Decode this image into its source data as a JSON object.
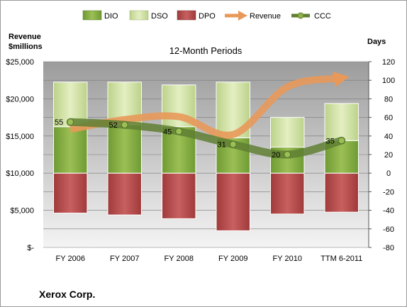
{
  "chart_data": {
    "type": "bar",
    "title": "12-Month Periods",
    "company": "Xerox Corp.",
    "categories": [
      "FY 2006",
      "FY 2007",
      "FY 2008",
      "FY 2009",
      "FY 2010",
      "TTM 6-2011"
    ],
    "left_axis": {
      "title_line1": "Revenue",
      "title_line2": "$millions",
      "ylim": [
        0,
        25000
      ],
      "ticks": [
        {
          "value": 0,
          "label": "$-"
        },
        {
          "value": 5000,
          "label": "$5,000"
        },
        {
          "value": 10000,
          "label": "$10,000"
        },
        {
          "value": 15000,
          "label": "$15,000"
        },
        {
          "value": 20000,
          "label": "$20,000"
        },
        {
          "value": 25000,
          "label": "$25,000"
        }
      ]
    },
    "right_axis": {
      "title": "Days",
      "ylim": [
        -80,
        120
      ],
      "ticks": [
        -80,
        -60,
        -40,
        -20,
        0,
        20,
        40,
        60,
        80,
        100,
        120
      ]
    },
    "series": [
      {
        "name": "DIO",
        "axis": "right",
        "kind": "bar",
        "color": "#8fb04a",
        "values": [
          50,
          52,
          50,
          38,
          28,
          35
        ]
      },
      {
        "name": "DSO",
        "axis": "right",
        "kind": "bar",
        "color": "#d6e6a9",
        "values": [
          48,
          46,
          45,
          60,
          32,
          40
        ]
      },
      {
        "name": "DPO",
        "axis": "right",
        "kind": "bar",
        "color": "#b84a4a",
        "values": [
          -43,
          -45,
          -49,
          -62,
          -44,
          -42
        ]
      },
      {
        "name": "Revenue",
        "axis": "left",
        "kind": "line",
        "color": "#e8995a",
        "values": [
          15900,
          17200,
          17600,
          15200,
          21600,
          22800
        ]
      },
      {
        "name": "CCC",
        "axis": "right",
        "kind": "line",
        "color": "#5f7f32",
        "values": [
          55,
          52,
          45,
          31,
          20,
          35
        ],
        "data_labels": [
          "55",
          "52",
          "45",
          "31",
          "20",
          "35"
        ]
      }
    ],
    "grid": true,
    "legend_position": "top"
  }
}
